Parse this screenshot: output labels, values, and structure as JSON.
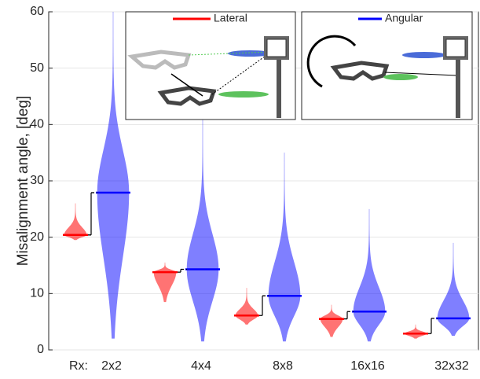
{
  "chart_data": {
    "type": "violin",
    "y_label": "Misalignment angle, [deg]",
    "x_prefix_label": "Rx:",
    "categories": [
      "2x2",
      "4x4",
      "8x8",
      "16x16",
      "32x32"
    ],
    "series": [
      {
        "name": "Lateral",
        "color": "#ff0000",
        "values": [
          20.4,
          13.8,
          6.1,
          5.5,
          2.9
        ],
        "min": [
          19.5,
          8.5,
          4.5,
          2.3,
          2.0
        ],
        "max": [
          26,
          15.5,
          11,
          8,
          4.5
        ]
      },
      {
        "name": "Angular",
        "color": "#0000ff",
        "values": [
          27.9,
          14.3,
          9.6,
          6.8,
          5.6
        ],
        "min": [
          2,
          1.5,
          1.5,
          1.5,
          2.5
        ],
        "max": [
          60,
          41,
          35,
          25,
          19
        ]
      }
    ],
    "ylim": [
      0,
      60
    ],
    "yticks": [
      0,
      10,
      20,
      30,
      40,
      50,
      60
    ],
    "grid": true
  }
}
